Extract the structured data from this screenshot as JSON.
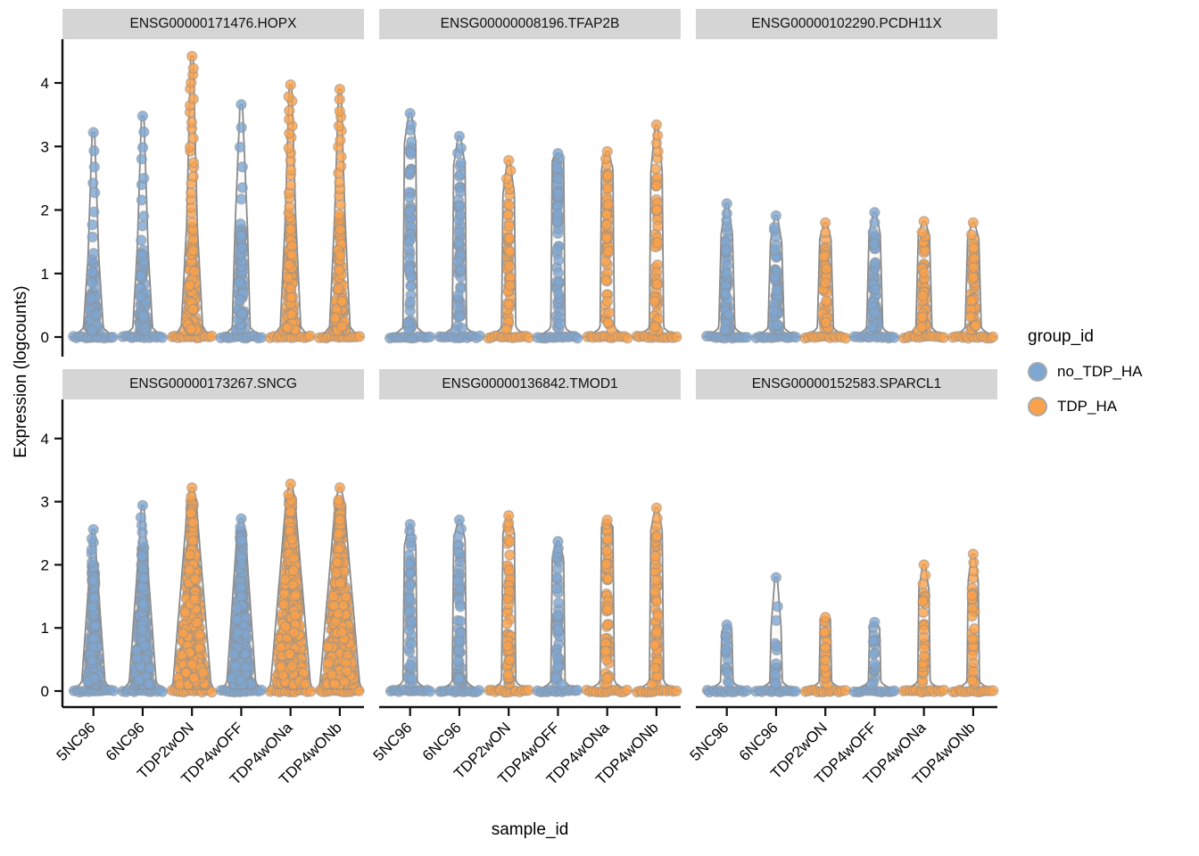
{
  "chart_data": {
    "type": "violin-jitter",
    "xlabel": "sample_id",
    "ylabel": "Expression (logcounts)",
    "legend_title": "group_id",
    "legend_items": [
      {
        "label": "no_TDP_HA",
        "color": "#7EA6D2"
      },
      {
        "label": "TDP_HA",
        "color": "#F9A14B"
      }
    ],
    "point_stroke": "#8f8f8f",
    "violin_stroke": "#8a8a8a",
    "violin_fill": "#f7f7f7",
    "axis_color": "#111111",
    "y_ticks": [
      0,
      1,
      2,
      3,
      4
    ],
    "ylim": [
      0,
      4.6
    ],
    "samples": [
      "5NC96",
      "6NC96",
      "TDP2wON",
      "TDP4wOFF",
      "TDP4wONa",
      "TDP4wONb"
    ],
    "sample_groups": [
      "no_TDP_HA",
      "no_TDP_HA",
      "TDP_HA",
      "no_TDP_HA",
      "TDP_HA",
      "TDP_HA"
    ],
    "facets": [
      {
        "title": "ENSG00000171476.HOPX",
        "violins": [
          {
            "max": 3.22,
            "body": 1.25,
            "hw": 11,
            "shape": 0.45,
            "n": 75,
            "tail": 9,
            "dk": 1.8
          },
          {
            "max": 3.48,
            "body": 1.4,
            "hw": 11,
            "shape": 0.45,
            "n": 80,
            "tail": 10,
            "dk": 1.8
          },
          {
            "max": 4.42,
            "body": 1.75,
            "hw": 12,
            "shape": 0.5,
            "n": 115,
            "tail": 22,
            "dk": 1.7
          },
          {
            "max": 3.66,
            "body": 1.7,
            "hw": 10,
            "shape": 0.3,
            "n": 85,
            "tail": 7,
            "dk": 1.15
          },
          {
            "max": 3.97,
            "body": 1.9,
            "hw": 11.5,
            "shape": 0.5,
            "n": 115,
            "tail": 18,
            "dk": 1.5
          },
          {
            "max": 3.9,
            "body": 1.9,
            "hw": 11.5,
            "shape": 0.5,
            "n": 115,
            "tail": 16,
            "dk": 1.5
          }
        ]
      },
      {
        "title": "ENSG00000008196.TFAP2B",
        "violins": [
          {
            "max": 3.52,
            "body": 3.05,
            "hw": 8,
            "shape": 0.2,
            "n": 62,
            "tail": 4,
            "dk": 1.2
          },
          {
            "max": 3.16,
            "body": 2.7,
            "hw": 8,
            "shape": 0.2,
            "n": 55,
            "tail": 4,
            "dk": 1.2
          },
          {
            "max": 2.78,
            "body": 2.25,
            "hw": 8,
            "shape": 0.2,
            "n": 48,
            "tail": 5,
            "dk": 1.2
          },
          {
            "max": 2.89,
            "body": 2.8,
            "hw": 8,
            "shape": 0.2,
            "n": 62,
            "tail": 2,
            "dk": 1.1
          },
          {
            "max": 2.92,
            "body": 2.65,
            "hw": 8,
            "shape": 0.2,
            "n": 52,
            "tail": 3,
            "dk": 1.2
          },
          {
            "max": 3.34,
            "body": 2.6,
            "hw": 8,
            "shape": 0.2,
            "n": 52,
            "tail": 6,
            "dk": 1.2
          }
        ]
      },
      {
        "title": "ENSG00000102290.PCDH11X",
        "violins": [
          {
            "max": 2.1,
            "body": 1.62,
            "hw": 9,
            "shape": 0.3,
            "n": 62,
            "tail": 5,
            "dk": 1.35
          },
          {
            "max": 1.91,
            "body": 1.5,
            "hw": 9,
            "shape": 0.3,
            "n": 55,
            "tail": 4,
            "dk": 1.35
          },
          {
            "max": 1.8,
            "body": 1.55,
            "hw": 9,
            "shape": 0.3,
            "n": 58,
            "tail": 2,
            "dk": 1.35
          },
          {
            "max": 1.96,
            "body": 1.62,
            "hw": 9,
            "shape": 0.3,
            "n": 62,
            "tail": 3,
            "dk": 1.35
          },
          {
            "max": 1.82,
            "body": 1.6,
            "hw": 9,
            "shape": 0.3,
            "n": 58,
            "tail": 2,
            "dk": 1.35
          },
          {
            "max": 1.8,
            "body": 1.55,
            "hw": 9,
            "shape": 0.3,
            "n": 58,
            "tail": 2,
            "dk": 1.35
          }
        ]
      },
      {
        "title": "ENSG00000173267.SNCG",
        "violins": [
          {
            "max": 2.56,
            "body": 2.02,
            "hw": 13,
            "shape": 0.72,
            "n": 230,
            "tail": 6,
            "dk": 1.5
          },
          {
            "max": 2.94,
            "body": 2.28,
            "hw": 15,
            "shape": 0.72,
            "n": 270,
            "tail": 5,
            "dk": 1.5
          },
          {
            "max": 3.22,
            "body": 3.02,
            "hw": 21,
            "shape": 0.78,
            "n": 430,
            "tail": 2,
            "dk": 1.5
          },
          {
            "max": 2.73,
            "body": 2.55,
            "hw": 16,
            "shape": 0.72,
            "n": 310,
            "tail": 2,
            "dk": 1.5
          },
          {
            "max": 3.28,
            "body": 3.05,
            "hw": 22,
            "shape": 0.78,
            "n": 460,
            "tail": 2,
            "dk": 1.5
          },
          {
            "max": 3.22,
            "body": 3.0,
            "hw": 22,
            "shape": 0.78,
            "n": 460,
            "tail": 2,
            "dk": 1.5
          }
        ]
      },
      {
        "title": "ENSG00000136842.TMOD1",
        "violins": [
          {
            "max": 2.64,
            "body": 2.3,
            "hw": 8,
            "shape": 0.2,
            "n": 46,
            "tail": 4,
            "dk": 1.25
          },
          {
            "max": 2.71,
            "body": 2.4,
            "hw": 8,
            "shape": 0.2,
            "n": 56,
            "tail": 3,
            "dk": 1.25
          },
          {
            "max": 2.78,
            "body": 2.5,
            "hw": 8,
            "shape": 0.2,
            "n": 56,
            "tail": 4,
            "dk": 1.25
          },
          {
            "max": 2.37,
            "body": 2.1,
            "hw": 8,
            "shape": 0.2,
            "n": 46,
            "tail": 4,
            "dk": 1.25
          },
          {
            "max": 2.71,
            "body": 2.6,
            "hw": 8,
            "shape": 0.2,
            "n": 66,
            "tail": 2,
            "dk": 1.15
          },
          {
            "max": 2.9,
            "body": 2.55,
            "hw": 8,
            "shape": 0.2,
            "n": 62,
            "tail": 3,
            "dk": 1.25
          }
        ]
      },
      {
        "title": "ENSG00000152583.SPARCL1",
        "violins": [
          {
            "max": 1.05,
            "body": 0.95,
            "hw": 7,
            "shape": 0.2,
            "n": 14,
            "tail": 2,
            "dk": 1.3
          },
          {
            "max": 1.8,
            "body": 1.0,
            "hw": 7,
            "shape": 0.2,
            "n": 12,
            "tail": 3,
            "dk": 1.3
          },
          {
            "max": 1.17,
            "body": 1.15,
            "hw": 7,
            "shape": 0.2,
            "n": 26,
            "tail": 1,
            "dk": 1.3
          },
          {
            "max": 1.09,
            "body": 1.0,
            "hw": 7,
            "shape": 0.2,
            "n": 16,
            "tail": 2,
            "dk": 1.3
          },
          {
            "max": 2.0,
            "body": 1.62,
            "hw": 7,
            "shape": 0.2,
            "n": 30,
            "tail": 3,
            "dk": 1.3
          },
          {
            "max": 2.17,
            "body": 1.75,
            "hw": 7,
            "shape": 0.2,
            "n": 34,
            "tail": 4,
            "dk": 1.3
          }
        ]
      }
    ]
  }
}
